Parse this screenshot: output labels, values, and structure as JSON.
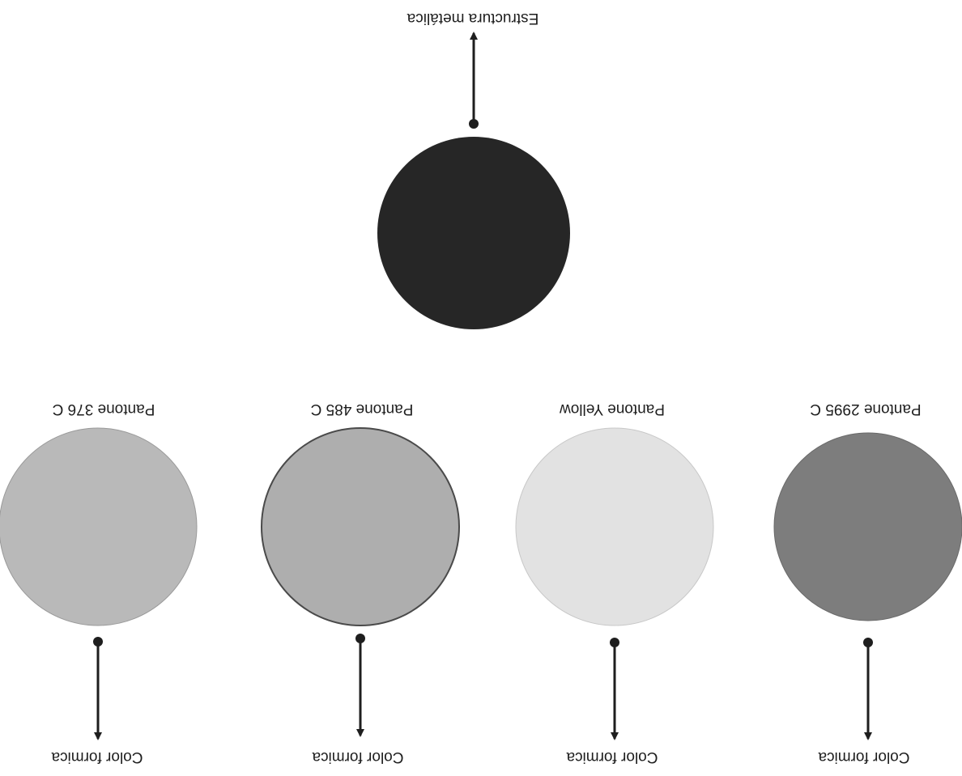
{
  "structure": {
    "label": "Estructura metálica",
    "color": "#262626"
  },
  "swatches": [
    {
      "pantone": "Pantone 376 C",
      "caption": "Color formica",
      "color": "#b9b9b9"
    },
    {
      "pantone": "Pantone 485 C",
      "caption": "Color formica",
      "color": "#aeaeae"
    },
    {
      "pantone": "Pantone Yellow",
      "caption": "Color formica",
      "color": "#e2e2e2"
    },
    {
      "pantone": "Pantone 2995 C",
      "caption": "Color formica",
      "color": "#7d7d7d"
    }
  ]
}
